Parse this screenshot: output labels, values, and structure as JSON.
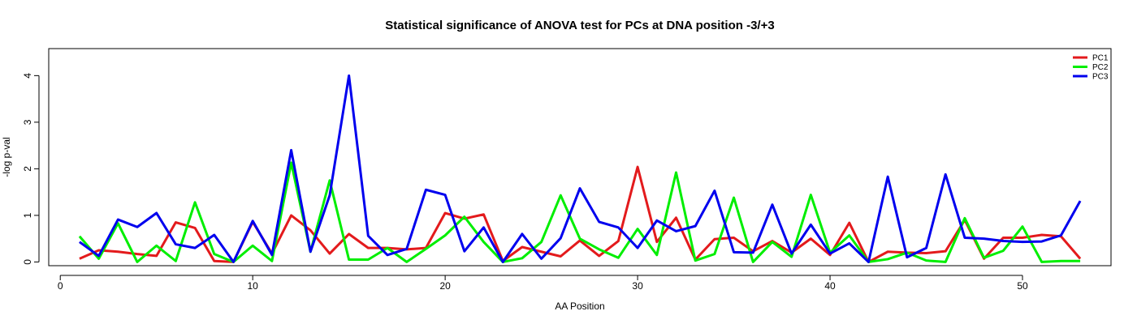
{
  "chart_data": {
    "type": "line",
    "title": "Statistical significance of ANOVA test for PCs at DNA position -3/+3",
    "xlabel": "AA Position",
    "ylabel": "-log p-val",
    "xlim": [
      -0.6,
      54.6
    ],
    "ylim": [
      -0.08,
      4.58
    ],
    "xticks": [
      0,
      10,
      20,
      30,
      40,
      50
    ],
    "yticks": [
      0,
      1,
      2,
      3,
      4
    ],
    "grid": false,
    "legend_position": "top-right",
    "x": [
      1,
      2,
      3,
      4,
      5,
      6,
      7,
      8,
      9,
      10,
      11,
      12,
      13,
      14,
      15,
      16,
      17,
      18,
      19,
      20,
      21,
      22,
      23,
      24,
      25,
      26,
      27,
      28,
      29,
      30,
      31,
      32,
      33,
      34,
      35,
      36,
      37,
      38,
      39,
      40,
      41,
      42,
      43,
      44,
      45,
      46,
      47,
      48,
      49,
      50,
      51,
      52,
      53
    ],
    "series": [
      {
        "name": "PC1",
        "color": "#e31a1c",
        "values": [
          0.07,
          0.25,
          0.22,
          0.17,
          0.13,
          0.85,
          0.73,
          0.02,
          0.0,
          0.86,
          0.18,
          1.0,
          0.68,
          0.18,
          0.6,
          0.3,
          0.3,
          0.27,
          0.3,
          1.05,
          0.93,
          1.02,
          0.02,
          0.32,
          0.22,
          0.12,
          0.46,
          0.13,
          0.45,
          2.04,
          0.43,
          0.95,
          0.05,
          0.49,
          0.52,
          0.23,
          0.45,
          0.2,
          0.5,
          0.15,
          0.84,
          0.0,
          0.22,
          0.2,
          0.19,
          0.23,
          0.9,
          0.07,
          0.52,
          0.52,
          0.58,
          0.55,
          0.07
        ]
      },
      {
        "name": "PC2",
        "color": "#00ee00",
        "values": [
          0.55,
          0.07,
          0.83,
          0.0,
          0.35,
          0.02,
          1.28,
          0.17,
          0.0,
          0.35,
          0.02,
          2.13,
          0.22,
          1.75,
          0.05,
          0.05,
          0.3,
          0.0,
          0.28,
          0.57,
          0.97,
          0.43,
          0.0,
          0.08,
          0.43,
          1.43,
          0.5,
          0.27,
          0.09,
          0.71,
          0.15,
          1.92,
          0.03,
          0.17,
          1.38,
          0.0,
          0.43,
          0.11,
          1.44,
          0.2,
          0.57,
          0.0,
          0.06,
          0.2,
          0.03,
          0.0,
          0.94,
          0.09,
          0.24,
          0.76,
          0.0,
          0.02,
          0.02
        ]
      },
      {
        "name": "PC3",
        "color": "#0000ee",
        "values": [
          0.43,
          0.13,
          0.91,
          0.75,
          1.05,
          0.38,
          0.3,
          0.58,
          0.0,
          0.88,
          0.15,
          2.4,
          0.22,
          1.43,
          4.0,
          0.56,
          0.15,
          0.28,
          1.55,
          1.44,
          0.23,
          0.74,
          0.0,
          0.6,
          0.07,
          0.51,
          1.58,
          0.86,
          0.74,
          0.3,
          0.89,
          0.66,
          0.77,
          1.53,
          0.21,
          0.2,
          1.23,
          0.18,
          0.8,
          0.18,
          0.4,
          0.0,
          1.83,
          0.1,
          0.3,
          1.88,
          0.52,
          0.5,
          0.45,
          0.43,
          0.44,
          0.57,
          1.31
        ]
      }
    ]
  }
}
